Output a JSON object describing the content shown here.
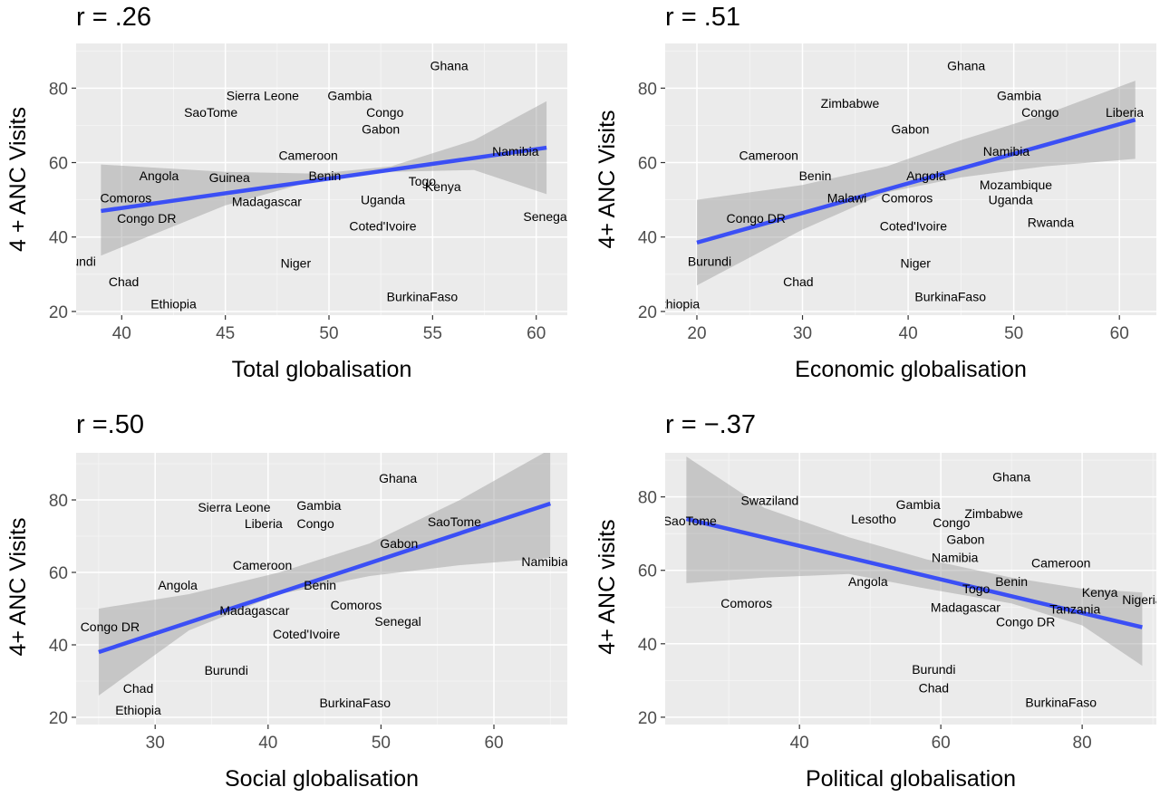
{
  "chart_data": [
    {
      "type": "scatter",
      "title": "r = .26",
      "xlabel": "Total globalisation",
      "ylabel": "4 + ANC Visits",
      "xlim": [
        37.8,
        61.5
      ],
      "ylim": [
        19,
        92
      ],
      "xticks": [
        40,
        45,
        50,
        55,
        60
      ],
      "yticks": [
        20,
        40,
        60,
        80
      ],
      "grid": true,
      "fit": {
        "x0": 39,
        "y0": 47,
        "x1": 60.5,
        "y1": 64
      },
      "band_upper": [
        [
          39,
          59.5
        ],
        [
          45,
          57.5
        ],
        [
          49.5,
          57
        ],
        [
          53,
          59
        ],
        [
          57,
          66
        ],
        [
          60.5,
          76.5
        ]
      ],
      "band_lower": [
        [
          60.5,
          51.5
        ],
        [
          57,
          58
        ],
        [
          53,
          57.5
        ],
        [
          49.5,
          55.5
        ],
        [
          45,
          48.5
        ],
        [
          39,
          35
        ]
      ],
      "points": [
        {
          "label": "Ghana",
          "x": 55.8,
          "y": 86
        },
        {
          "label": "Sierra Leone",
          "x": 46.8,
          "y": 78
        },
        {
          "label": "Gambia",
          "x": 51,
          "y": 78
        },
        {
          "label": "SaoTome",
          "x": 44.3,
          "y": 73.5
        },
        {
          "label": "Congo",
          "x": 52.7,
          "y": 73.5
        },
        {
          "label": "Gabon",
          "x": 52.5,
          "y": 69
        },
        {
          "label": "Cameroon",
          "x": 49,
          "y": 62
        },
        {
          "label": "Namibia",
          "x": 59,
          "y": 63
        },
        {
          "label": "Angola",
          "x": 41.8,
          "y": 56.5
        },
        {
          "label": "Guinea",
          "x": 45.2,
          "y": 56
        },
        {
          "label": "Benin",
          "x": 49.8,
          "y": 56.5
        },
        {
          "label": "Togo",
          "x": 54.5,
          "y": 55
        },
        {
          "label": "Kenya",
          "x": 55.5,
          "y": 53.5
        },
        {
          "label": "Comoros",
          "x": 40.2,
          "y": 50.5
        },
        {
          "label": "Madagascar",
          "x": 47,
          "y": 49.5
        },
        {
          "label": "Uganda",
          "x": 52.6,
          "y": 50
        },
        {
          "label": "Congo DR",
          "x": 41.2,
          "y": 45
        },
        {
          "label": "Coted'Ivoire",
          "x": 52.6,
          "y": 43
        },
        {
          "label": "Senegal",
          "x": 60.5,
          "y": 45.5
        },
        {
          "label": "Burundi",
          "x": 37.7,
          "y": 33.5
        },
        {
          "label": "Niger",
          "x": 48.4,
          "y": 33
        },
        {
          "label": "Chad",
          "x": 40.1,
          "y": 28
        },
        {
          "label": "Ethiopia",
          "x": 42.5,
          "y": 22
        },
        {
          "label": "BurkinaFaso",
          "x": 54.5,
          "y": 24
        }
      ]
    },
    {
      "type": "scatter",
      "title": "r = .51",
      "xlabel": "Economic globalisation",
      "ylabel": "4+ ANC Visits",
      "xlim": [
        17,
        63.5
      ],
      "ylim": [
        19,
        92
      ],
      "xticks": [
        20,
        30,
        40,
        50,
        60
      ],
      "yticks": [
        20,
        40,
        60,
        80
      ],
      "grid": true,
      "fit": {
        "x0": 20,
        "y0": 38.5,
        "x1": 61.5,
        "y1": 71.5
      },
      "band_upper": [
        [
          20,
          50
        ],
        [
          30,
          54
        ],
        [
          38,
          59
        ],
        [
          45,
          66
        ],
        [
          53,
          73
        ],
        [
          61.5,
          82
        ]
      ],
      "band_lower": [
        [
          61.5,
          61
        ],
        [
          53,
          59
        ],
        [
          45,
          56
        ],
        [
          38,
          52
        ],
        [
          30,
          42
        ],
        [
          20,
          27
        ]
      ],
      "points": [
        {
          "label": "Ghana",
          "x": 45.5,
          "y": 86
        },
        {
          "label": "Zimbabwe",
          "x": 34.5,
          "y": 76
        },
        {
          "label": "Gambia",
          "x": 50.5,
          "y": 78
        },
        {
          "label": "Congo",
          "x": 52.5,
          "y": 73.5
        },
        {
          "label": "Liberia",
          "x": 60.5,
          "y": 73.5
        },
        {
          "label": "Gabon",
          "x": 40.2,
          "y": 69
        },
        {
          "label": "Cameroon",
          "x": 26.8,
          "y": 62
        },
        {
          "label": "Namibia",
          "x": 49.3,
          "y": 63
        },
        {
          "label": "Benin",
          "x": 31.2,
          "y": 56.5
        },
        {
          "label": "Angola",
          "x": 41.7,
          "y": 56.5
        },
        {
          "label": "Mozambique",
          "x": 50.2,
          "y": 54
        },
        {
          "label": "Malawi",
          "x": 34.2,
          "y": 50.5
        },
        {
          "label": "Comoros",
          "x": 39.9,
          "y": 50.5
        },
        {
          "label": "Uganda",
          "x": 49.7,
          "y": 50
        },
        {
          "label": "Congo DR",
          "x": 25.6,
          "y": 45
        },
        {
          "label": "Coted'Ivoire",
          "x": 40.5,
          "y": 43
        },
        {
          "label": "Rwanda",
          "x": 53.5,
          "y": 44
        },
        {
          "label": "Burundi",
          "x": 21.2,
          "y": 33.5
        },
        {
          "label": "Niger",
          "x": 40.7,
          "y": 33
        },
        {
          "label": "Chad",
          "x": 29.6,
          "y": 28
        },
        {
          "label": "Ethiopia",
          "x": 18.1,
          "y": 22
        },
        {
          "label": "BurkinaFaso",
          "x": 44,
          "y": 24
        }
      ]
    },
    {
      "type": "scatter",
      "title": "r =.50",
      "xlabel": "Social globalisation",
      "ylabel": "4+ ANC Visits",
      "xlim": [
        23,
        66.5
      ],
      "ylim": [
        18,
        93
      ],
      "xticks": [
        30,
        40,
        50,
        60
      ],
      "yticks": [
        20,
        40,
        60,
        80
      ],
      "grid": true,
      "fit": {
        "x0": 25,
        "y0": 38,
        "x1": 65,
        "y1": 79
      },
      "band_upper": [
        [
          25,
          50
        ],
        [
          33,
          54
        ],
        [
          41,
          60
        ],
        [
          49,
          68
        ],
        [
          57,
          80
        ],
        [
          65,
          94
        ]
      ],
      "band_lower": [
        [
          65,
          64
        ],
        [
          57,
          62
        ],
        [
          49,
          59
        ],
        [
          41,
          54
        ],
        [
          33,
          44
        ],
        [
          25,
          26
        ]
      ],
      "points": [
        {
          "label": "Ghana",
          "x": 51.5,
          "y": 86
        },
        {
          "label": "Sierra Leone",
          "x": 37,
          "y": 78
        },
        {
          "label": "Gambia",
          "x": 44.5,
          "y": 78.5
        },
        {
          "label": "Liberia",
          "x": 39.6,
          "y": 73.5
        },
        {
          "label": "Congo",
          "x": 44.2,
          "y": 73.5
        },
        {
          "label": "SaoTome",
          "x": 56.5,
          "y": 74
        },
        {
          "label": "Gabon",
          "x": 51.6,
          "y": 68
        },
        {
          "label": "Namibia",
          "x": 64.5,
          "y": 63
        },
        {
          "label": "Cameroon",
          "x": 39.5,
          "y": 62
        },
        {
          "label": "Angola",
          "x": 32,
          "y": 56.5
        },
        {
          "label": "Benin",
          "x": 44.6,
          "y": 56.5
        },
        {
          "label": "Madagascar",
          "x": 38.8,
          "y": 49.5
        },
        {
          "label": "Comoros",
          "x": 47.8,
          "y": 51
        },
        {
          "label": "Senegal",
          "x": 51.5,
          "y": 46.5
        },
        {
          "label": "Congo DR",
          "x": 26,
          "y": 45
        },
        {
          "label": "Coted'Ivoire",
          "x": 43.4,
          "y": 43
        },
        {
          "label": "Burundi",
          "x": 36.3,
          "y": 33
        },
        {
          "label": "Chad",
          "x": 28.5,
          "y": 28
        },
        {
          "label": "Ethiopia",
          "x": 28.5,
          "y": 22
        },
        {
          "label": "BurkinaFaso",
          "x": 47.7,
          "y": 24
        }
      ]
    },
    {
      "type": "scatter",
      "title": "r = −.37",
      "xlabel": "Political globalisation",
      "ylabel": "4+ ANC visits",
      "xlim": [
        21,
        90.5
      ],
      "ylim": [
        18,
        92
      ],
      "xticks": [
        40,
        60,
        80
      ],
      "yticks": [
        20,
        40,
        60,
        80
      ],
      "grid": true,
      "fit": {
        "x0": 24,
        "y0": 74,
        "x1": 88.5,
        "y1": 44.5
      },
      "band_upper": [
        [
          24,
          91
        ],
        [
          35,
          77
        ],
        [
          47,
          69
        ],
        [
          58,
          63
        ],
        [
          70,
          58
        ],
        [
          80,
          55
        ],
        [
          88.5,
          54
        ]
      ],
      "band_lower": [
        [
          88.5,
          34
        ],
        [
          80,
          45
        ],
        [
          70,
          51
        ],
        [
          58,
          55
        ],
        [
          47,
          59
        ],
        [
          35,
          58
        ],
        [
          24,
          56.5
        ]
      ],
      "points": [
        {
          "label": "Ghana",
          "x": 70,
          "y": 85.5
        },
        {
          "label": "Swaziland",
          "x": 35.8,
          "y": 79
        },
        {
          "label": "Gambia",
          "x": 56.8,
          "y": 78
        },
        {
          "label": "Zimbabwe",
          "x": 67.5,
          "y": 75.5
        },
        {
          "label": "Lesotho",
          "x": 50.5,
          "y": 74
        },
        {
          "label": "Congo",
          "x": 61.5,
          "y": 73
        },
        {
          "label": "SaoTome",
          "x": 24.5,
          "y": 73.5
        },
        {
          "label": "Gabon",
          "x": 63.5,
          "y": 68.5
        },
        {
          "label": "Namibia",
          "x": 62,
          "y": 63.5
        },
        {
          "label": "Cameroon",
          "x": 77,
          "y": 62
        },
        {
          "label": "Angola",
          "x": 49.7,
          "y": 57
        },
        {
          "label": "Benin",
          "x": 70,
          "y": 57
        },
        {
          "label": "Togo",
          "x": 65,
          "y": 55
        },
        {
          "label": "Kenya",
          "x": 82.5,
          "y": 54
        },
        {
          "label": "Nigeria",
          "x": 88.5,
          "y": 52
        },
        {
          "label": "Comoros",
          "x": 32.5,
          "y": 51
        },
        {
          "label": "Madagascar",
          "x": 63.5,
          "y": 50
        },
        {
          "label": "Tanzania",
          "x": 79,
          "y": 49.5
        },
        {
          "label": "Congo DR",
          "x": 72,
          "y": 46
        },
        {
          "label": "Burundi",
          "x": 59,
          "y": 33
        },
        {
          "label": "Chad",
          "x": 59,
          "y": 28
        },
        {
          "label": "BurkinaFaso",
          "x": 77,
          "y": 24
        }
      ]
    }
  ]
}
